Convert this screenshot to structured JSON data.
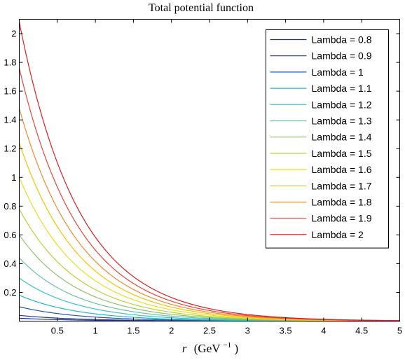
{
  "chart_data": {
    "type": "line",
    "title": "Total potential function",
    "xlabel": "r (GeV⁻¹)",
    "xlabel_italic": "r",
    "xlabel_unit_base": "(GeV",
    "xlabel_unit_exp": "−1",
    "xlabel_unit_close": ")",
    "ylabel": "",
    "xlim": [
      0,
      5
    ],
    "ylim": [
      0,
      2.1
    ],
    "xticks": [
      0.5,
      1,
      1.5,
      2,
      2.5,
      3,
      3.5,
      4,
      4.5,
      5
    ],
    "xtick_labels": [
      "0.5",
      "1",
      "1.5",
      "2",
      "2.5",
      "3",
      "3.5",
      "4",
      "4.5",
      "5"
    ],
    "yticks": [
      0.2,
      0.4,
      0.6,
      0.8,
      1,
      1.2,
      1.4,
      1.6,
      1.8,
      2
    ],
    "ytick_labels": [
      "0.2",
      "0.4",
      "0.6",
      "0.8",
      "1",
      "1.2",
      "1.4",
      "1.6",
      "1.8",
      "2"
    ],
    "grid": false,
    "legend_position": "top-right",
    "decay_rate": 1.27,
    "x_samples": [
      0,
      0.25,
      0.5,
      0.75,
      1,
      1.25,
      1.5,
      1.75,
      2,
      2.25,
      2.5,
      2.75,
      3,
      3.25,
      3.5,
      3.75,
      4,
      4.25,
      4.5,
      4.75,
      5
    ],
    "series": [
      {
        "name": "Lambda = 0.8",
        "color": "#1f2f8f",
        "y0": 0.02
      },
      {
        "name": "Lambda = 0.9",
        "color": "#1f3c9a",
        "y0": 0.04
      },
      {
        "name": "Lambda = 1",
        "color": "#2056b0",
        "y0": 0.1
      },
      {
        "name": "Lambda = 1.1",
        "color": "#1fb6d6",
        "y0": 0.18
      },
      {
        "name": "Lambda = 1.2",
        "color": "#39c3cf",
        "y0": 0.3
      },
      {
        "name": "Lambda = 1.3",
        "color": "#6cc2a3",
        "y0": 0.44
      },
      {
        "name": "Lambda = 1.4",
        "color": "#8ec46a",
        "y0": 0.6
      },
      {
        "name": "Lambda = 1.5",
        "color": "#b8d33a",
        "y0": 0.78
      },
      {
        "name": "Lambda = 1.6",
        "color": "#e6e020",
        "y0": 1.0
      },
      {
        "name": "Lambda = 1.7",
        "color": "#f5c400",
        "y0": 1.24
      },
      {
        "name": "Lambda = 1.8",
        "color": "#f28a30",
        "y0": 1.48
      },
      {
        "name": "Lambda = 1.9",
        "color": "#e8463a",
        "y0": 1.76
      },
      {
        "name": "Lambda = 2",
        "color": "#dc1f1f",
        "y0": 2.08
      }
    ]
  }
}
